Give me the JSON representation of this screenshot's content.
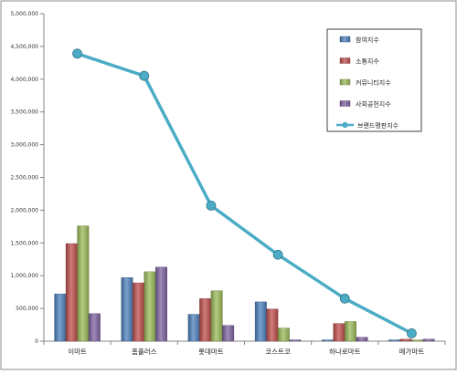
{
  "chart_data": {
    "type": "bar",
    "categories": [
      "이마트",
      "홈플러스",
      "롯데마트",
      "코스트코",
      "하나로마트",
      "메가마트"
    ],
    "ylim": [
      0,
      5000000
    ],
    "y_ticks": [
      "0",
      "500,000",
      "1,000,000",
      "1,500,000",
      "2,000,000",
      "2,500,000",
      "3,000,000",
      "3,500,000",
      "4,000,000",
      "4,500,000",
      "5,000,000"
    ],
    "y_tick_values": [
      0,
      500000,
      1000000,
      1500000,
      2000000,
      2500000,
      3000000,
      3500000,
      4000000,
      4500000,
      5000000
    ],
    "legend_position": "top-right",
    "grid": false,
    "series": [
      {
        "name": "참여지수",
        "kind": "bar",
        "color": "#4F81BD",
        "values": [
          720000,
          970000,
          410000,
          600000,
          20000,
          20000
        ]
      },
      {
        "name": "소통지수",
        "kind": "bar",
        "color": "#C0504D",
        "values": [
          1490000,
          890000,
          650000,
          490000,
          270000,
          30000
        ]
      },
      {
        "name": "커뮤니티지수",
        "kind": "bar",
        "color": "#9BBB59",
        "values": [
          1760000,
          1060000,
          770000,
          200000,
          300000,
          20000
        ]
      },
      {
        "name": "사회공헌지수",
        "kind": "bar",
        "color": "#8064A2",
        "values": [
          420000,
          1130000,
          240000,
          20000,
          60000,
          30000
        ]
      },
      {
        "name": "브랜드평판지수",
        "kind": "line",
        "color": "#4BACC6",
        "values": [
          4390000,
          4050000,
          2070000,
          1320000,
          650000,
          120000
        ]
      }
    ]
  }
}
